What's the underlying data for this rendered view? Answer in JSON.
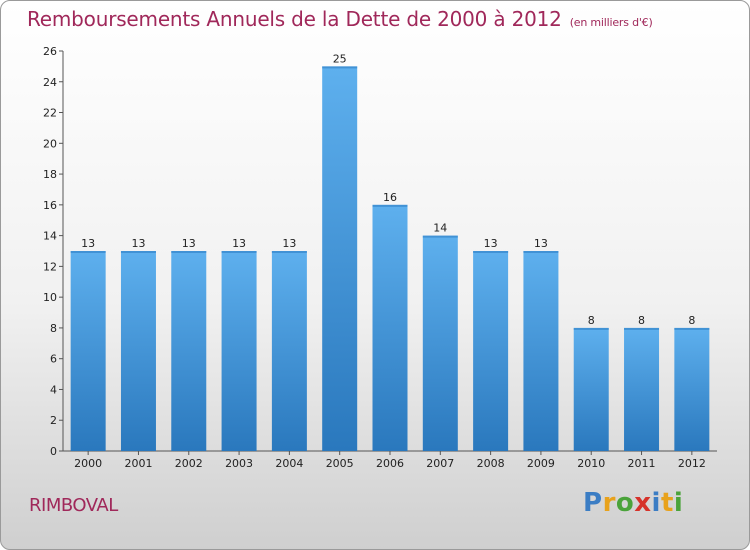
{
  "chart_data": {
    "type": "bar",
    "title": "Remboursements Annuels de la Dette de 2000 à 2012",
    "subtitle": "(en milliers d'€)",
    "categories": [
      "2000",
      "2001",
      "2002",
      "2003",
      "2004",
      "2005",
      "2006",
      "2007",
      "2008",
      "2009",
      "2010",
      "2011",
      "2012"
    ],
    "values": [
      13,
      13,
      13,
      13,
      13,
      25,
      16,
      14,
      13,
      13,
      8,
      8,
      8
    ],
    "ylim": [
      0,
      26
    ],
    "yticks": [
      0,
      2,
      4,
      6,
      8,
      10,
      12,
      14,
      16,
      18,
      20,
      22,
      24,
      26
    ],
    "xlabel": "",
    "ylabel": "",
    "grid": false,
    "bar_color": "#3a8fd8"
  },
  "commune": "RIMBOVAL",
  "logo": {
    "letters": [
      "P",
      "r",
      "o",
      "x",
      "i",
      "t",
      "i"
    ],
    "colors": [
      "#3b7dc4",
      "#e8a21c",
      "#4aa33a",
      "#d6322a",
      "#3b7dc4",
      "#e8a21c",
      "#4aa33a"
    ]
  }
}
